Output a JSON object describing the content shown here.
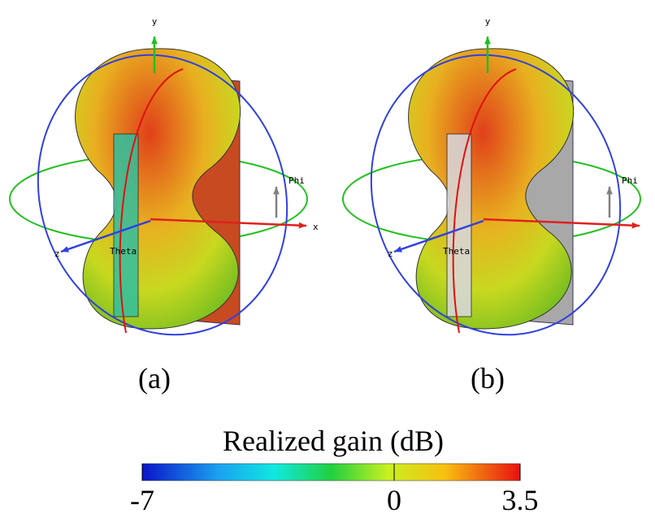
{
  "panels": [
    {
      "label": "(a)",
      "y_axis": "y",
      "x_axis": "x",
      "z_axis": "z",
      "phi": "Phi",
      "theta": "Theta"
    },
    {
      "label": "(b)",
      "y_axis": "y",
      "z_axis": "z",
      "phi": "Phi",
      "theta": "Theta"
    }
  ],
  "colorbar": {
    "title": "Realized gain (dB)",
    "lim": [
      -7,
      3.5
    ],
    "ticks": [
      -7,
      0,
      3.5
    ]
  }
}
